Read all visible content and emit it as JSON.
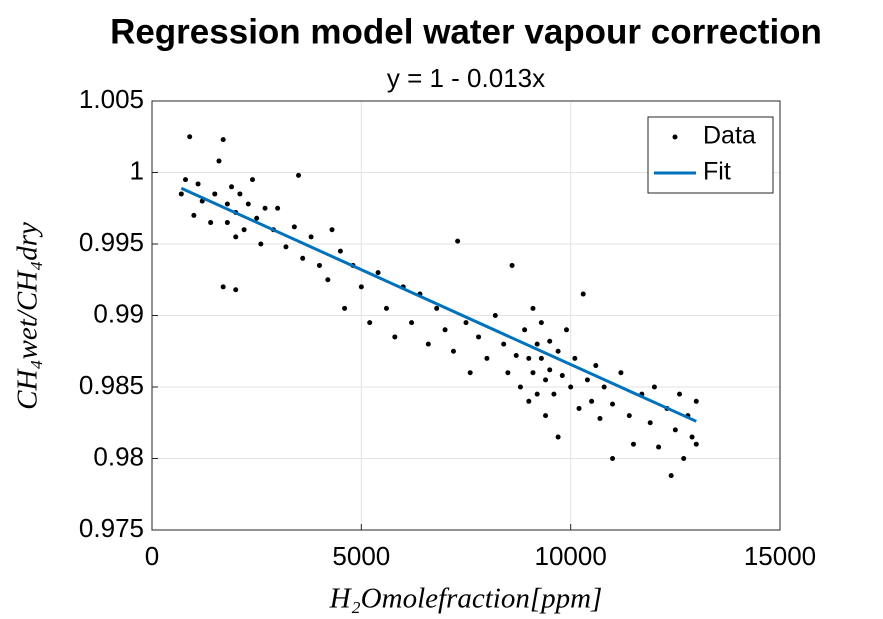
{
  "chart_data": {
    "type": "scatter",
    "title": "Regression model water vapour correction",
    "subtitle": "y = 1 - 0.013x",
    "xlabel": "H₂Omolefraction[ppm]",
    "ylabel": "CH₄wet/CH₄dry",
    "xlim": [
      0,
      15000
    ],
    "xticks": [
      0,
      5000,
      10000,
      15000
    ],
    "ylim": [
      0.975,
      1.005
    ],
    "yticks": [
      0.975,
      0.98,
      0.985,
      0.99,
      0.995,
      1,
      1.005
    ],
    "grid": true,
    "legend": "northeast",
    "series": [
      {
        "name": "Data",
        "color": "#000000",
        "kind": "points",
        "x": [
          700,
          800,
          900,
          1000,
          1100,
          1200,
          1400,
          1500,
          1600,
          1700,
          1800,
          1800,
          1900,
          2000,
          2000,
          2100,
          2200,
          2300,
          2400,
          2500,
          2600,
          2700,
          1700,
          2000,
          2900,
          3000,
          3200,
          3400,
          3500,
          3600,
          3800,
          4000,
          4200,
          4300,
          4500,
          4600,
          4800,
          5000,
          5200,
          5400,
          5600,
          5800,
          6000,
          6200,
          6400,
          6600,
          6800,
          7000,
          7200,
          7300,
          7500,
          7600,
          7800,
          8000,
          8200,
          8400,
          8500,
          8600,
          8700,
          8800,
          8900,
          9000,
          9000,
          9100,
          9100,
          9200,
          9200,
          9300,
          9300,
          9400,
          9400,
          9500,
          9500,
          9600,
          9700,
          9700,
          9800,
          9900,
          10000,
          10100,
          10200,
          10300,
          10400,
          10500,
          10600,
          10700,
          10800,
          11000,
          11000,
          11200,
          11400,
          11500,
          11700,
          11900,
          12000,
          12100,
          12300,
          12400,
          12500,
          12600,
          12700,
          12800,
          12900,
          13000,
          13000
        ],
        "values": [
          0.9985,
          0.9995,
          1.0025,
          0.997,
          0.9992,
          0.998,
          0.9965,
          0.9985,
          1.0008,
          1.0023,
          0.9978,
          0.9965,
          0.999,
          0.9972,
          0.9955,
          0.9985,
          0.996,
          0.9978,
          0.9995,
          0.9968,
          0.995,
          0.9975,
          0.992,
          0.9918,
          0.996,
          0.9975,
          0.9948,
          0.9962,
          0.9998,
          0.994,
          0.9955,
          0.9935,
          0.9925,
          0.996,
          0.9945,
          0.9905,
          0.9935,
          0.992,
          0.9895,
          0.993,
          0.9905,
          0.9885,
          0.992,
          0.9895,
          0.9915,
          0.988,
          0.9905,
          0.989,
          0.9875,
          0.9952,
          0.9895,
          0.986,
          0.9885,
          0.987,
          0.99,
          0.988,
          0.986,
          0.9935,
          0.9872,
          0.985,
          0.989,
          0.987,
          0.984,
          0.9905,
          0.986,
          0.988,
          0.9845,
          0.9895,
          0.987,
          0.9855,
          0.983,
          0.9882,
          0.9862,
          0.9845,
          0.9875,
          0.9815,
          0.9858,
          0.989,
          0.985,
          0.987,
          0.9835,
          0.9915,
          0.9855,
          0.984,
          0.9865,
          0.9828,
          0.985,
          0.9838,
          0.98,
          0.986,
          0.983,
          0.981,
          0.9845,
          0.9825,
          0.985,
          0.9808,
          0.9835,
          0.9788,
          0.982,
          0.9845,
          0.98,
          0.983,
          0.9815,
          0.984,
          0.981
        ]
      },
      {
        "name": "Fit",
        "color": "#0072bd",
        "kind": "line",
        "x": [
          700,
          13000
        ],
        "values": [
          0.9989,
          0.9826
        ]
      }
    ]
  }
}
